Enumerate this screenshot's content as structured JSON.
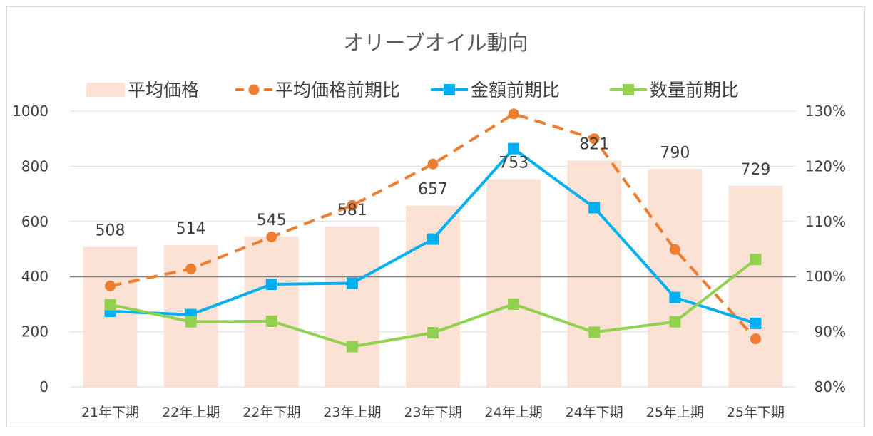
{
  "chart_data": {
    "type": "bar+line",
    "title": "オリーブオイル動向",
    "categories": [
      "21年下期",
      "22年上期",
      "22年下期",
      "23年上期",
      "23年下期",
      "24年上期",
      "24年下期",
      "25年上期",
      "25年下期"
    ],
    "bar_series": {
      "name": "平均価格",
      "values": [
        508,
        514,
        545,
        581,
        657,
        753,
        821,
        790,
        729
      ],
      "data_labels": [
        "508",
        "514",
        "545",
        "581",
        "657",
        "753",
        "821",
        "790",
        "729"
      ],
      "color": "#fbe2d5"
    },
    "line_series": [
      {
        "name": "平均価格前期比",
        "values": [
          98.3,
          101.4,
          107.2,
          112.9,
          120.4,
          129.5,
          125.0,
          104.9,
          88.7
        ],
        "color": "#ed7d31",
        "style": "dashed",
        "marker": "circle"
      },
      {
        "name": "金額前期比",
        "values": [
          93.7,
          93.1,
          98.6,
          98.8,
          106.8,
          123.2,
          112.5,
          96.2,
          91.5
        ],
        "color": "#00b0f0",
        "style": "solid",
        "marker": "square"
      },
      {
        "name": "数量前期比",
        "values": [
          94.9,
          91.8,
          91.9,
          87.3,
          89.8,
          95.0,
          89.9,
          91.8,
          103.1
        ],
        "color": "#92d050",
        "style": "solid",
        "marker": "square"
      }
    ],
    "y_left": {
      "min": 0,
      "max": 1000,
      "ticks": [
        "0",
        "200",
        "400",
        "600",
        "800",
        "1000"
      ]
    },
    "y_right": {
      "min": 80,
      "max": 130,
      "ticks": [
        "80%",
        "90%",
        "100%",
        "110%",
        "120%",
        "130%"
      ]
    },
    "reference_line": {
      "axis": "right",
      "value": 100,
      "color": "#7f7f7f"
    },
    "grid": true,
    "legend_position": "top"
  }
}
